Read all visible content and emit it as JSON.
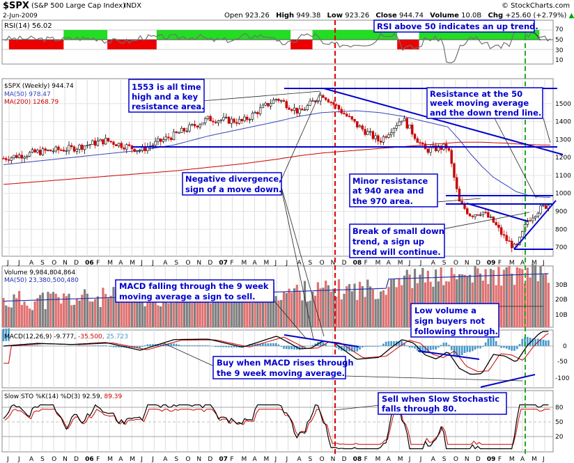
{
  "header": {
    "symbol": "$SPX",
    "name": "(S&P 500 Large Cap Index)",
    "exchange": "INDX",
    "site": "© StockCharts.com",
    "date": "2-Jun-2009",
    "open_label": "Open",
    "open": "923.26",
    "high_label": "High",
    "high": "949.38",
    "low_label": "Low",
    "low": "923.26",
    "close_label": "Close",
    "close": "944.74",
    "volume_label": "Volume",
    "volume": "10.0B",
    "chg_label": "Chg",
    "chg": "+25.60 (+2.79%)",
    "chg_arrow": "▲"
  },
  "colors": {
    "up": "#00aa00",
    "down": "#cc0000",
    "ann": "#0000cc",
    "ma50": "#3344bb",
    "ma200": "#cc0000",
    "rsi_green": "#22dd22",
    "rsi_red": "#ee0000",
    "vol_up": "#e07070",
    "vol_down": "#808080",
    "macd_hist": "#4499cc",
    "vline_red": "#dd0000",
    "vline_green": "#22aa22"
  },
  "x_ticks": [
    "J",
    "J",
    "A",
    "S",
    "O",
    "N",
    "D",
    "06",
    "F",
    "M",
    "A",
    "M",
    "J",
    "J",
    "A",
    "S",
    "O",
    "N",
    "D",
    "07",
    "F",
    "M",
    "A",
    "M",
    "J",
    "J",
    "A",
    "S",
    "O",
    "N",
    "D",
    "08",
    "F",
    "M",
    "A",
    "M",
    "J",
    "J",
    "A",
    "S",
    "O",
    "N",
    "D",
    "09",
    "F",
    "M",
    "A",
    "M",
    "J"
  ],
  "rsi": {
    "legend": "RSI(14) 56.02",
    "ticks": [
      "70",
      "50",
      "30",
      "10"
    ],
    "above_blocks": [
      [
        0.11,
        0.19
      ],
      [
        0.28,
        0.525
      ],
      [
        0.565,
        0.72
      ],
      [
        0.76,
        0.98
      ]
    ],
    "below_blocks": [
      [
        0.01,
        0.11
      ],
      [
        0.19,
        0.28
      ],
      [
        0.525,
        0.565
      ],
      [
        0.72,
        0.76
      ]
    ]
  },
  "price": {
    "legend": "$SPX (Weekly) 944.74",
    "ma50_legend": "MA(50) 978.47",
    "ma200_legend": "MA(200) 1268.79",
    "ticks": [
      "1500",
      "1400",
      "1300",
      "1200",
      "1100",
      "1000",
      "900",
      "800",
      "700"
    ],
    "ylim": [
      650,
      1600
    ]
  },
  "volume": {
    "legend": "Volume 9,984,804,864",
    "ma_legend": "MA(50) 23,380,500,480",
    "ticks": [
      "30B",
      "20B",
      "10B"
    ]
  },
  "macd": {
    "legend": "MACD(12,26,9) -9.777,",
    "signal": "-35.500,",
    "hist": "25.723",
    "ticks": [
      "0",
      "-50",
      "-100"
    ]
  },
  "sto": {
    "legend": "Slow STO %K(14) %D(3) 92.59,",
    "d": "89.39",
    "ticks": [
      "80",
      "50",
      "20"
    ]
  },
  "annotations": {
    "rsi_note": "RSI above 50 indicates an up trend.",
    "ath_note": "1553 is all time high and a key resistance area.",
    "resist_note": "Resistance at the 50 week moving average and the down trend line.",
    "negdiv_note": "Negative divergence, sign of a move down.",
    "minor_note": "Minor resistance at 940 area and the 970 area.",
    "break_note": "Break of small down trend, a sign up trend will continue.",
    "macd_sell_note": "MACD falling through the 9 week moving average a sign to sell.",
    "lowvol_note": "Low volume a sign buyers not following through.",
    "macd_buy_note": "Buy when MACD rises through the 9 week moving average.",
    "sto_note": "Sell when Slow Stochastic falls through 80."
  },
  "chart_data": {
    "type": "line",
    "title": "$SPX (S&P 500 Large Cap Index) INDX",
    "x_range": [
      "2005-06",
      "2009-06"
    ],
    "ylim": [
      650,
      1600
    ],
    "key_levels": [
      1553,
      1250,
      970,
      940,
      680
    ],
    "series": [
      {
        "name": "$SPX (Weekly)",
        "x": [
          "2005-06",
          "2005-09",
          "2005-12",
          "2006-03",
          "2006-06",
          "2006-09",
          "2006-12",
          "2007-03",
          "2007-06",
          "2007-08",
          "2007-10",
          "2008-01",
          "2008-03",
          "2008-05",
          "2008-07",
          "2008-09",
          "2008-10",
          "2008-11",
          "2008-12",
          "2009-01",
          "2009-02",
          "2009-03",
          "2009-04",
          "2009-05",
          "2009-06"
        ],
        "values": [
          1195,
          1230,
          1250,
          1295,
          1240,
          1325,
          1415,
          1400,
          1530,
          1450,
          1553,
          1380,
          1290,
          1420,
          1240,
          1260,
          950,
          880,
          900,
          840,
          750,
          690,
          850,
          910,
          944
        ]
      },
      {
        "name": "MA(50)",
        "values": [
          1160,
          1180,
          1200,
          1220,
          1240,
          1270,
          1320,
          1360,
          1400,
          1430,
          1450,
          1460,
          1450,
          1430,
          1400,
          1370,
          1300,
          1220,
          1150,
          1090,
          1050,
          1010,
          990,
          980,
          978
        ]
      },
      {
        "name": "MA(200)",
        "values": [
          1050,
          1065,
          1080,
          1095,
          1110,
          1125,
          1145,
          1165,
          1190,
          1210,
          1225,
          1240,
          1250,
          1260,
          1270,
          1280,
          1285,
          1285,
          1285,
          1282,
          1280,
          1276,
          1272,
          1270,
          1269
        ]
      }
    ]
  }
}
